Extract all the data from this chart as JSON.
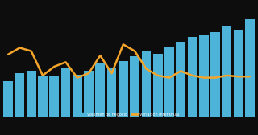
{
  "bar_values": [
    30,
    36,
    38,
    34,
    34,
    40,
    35,
    38,
    45,
    40,
    46,
    50,
    55,
    52,
    57,
    62,
    66,
    68,
    70,
    75,
    72,
    80
  ],
  "line_values": [
    27,
    33,
    30,
    8,
    16,
    20,
    6,
    10,
    26,
    10,
    36,
    30,
    14,
    8,
    6,
    12,
    8,
    6,
    6,
    8,
    7,
    7
  ],
  "bar_color": "#4db3d9",
  "line_color": "#f5a52a",
  "background_color": "#0d0d0d",
  "legend_bar_label": "Volumen de negocio",
  "legend_line_label": "Variación interanual",
  "n_bars": 22
}
